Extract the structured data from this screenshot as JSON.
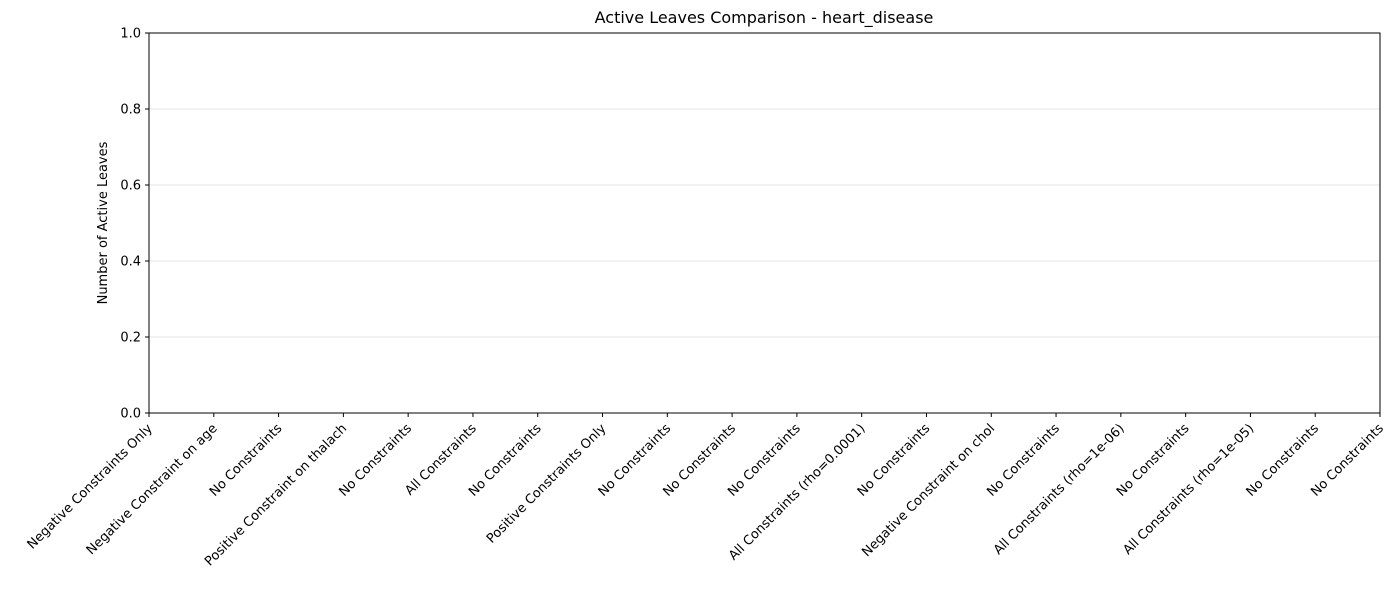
{
  "chart_data": {
    "type": "bar",
    "title": "Active Leaves Comparison - heart_disease",
    "xlabel": "",
    "ylabel": "Number of Active Leaves",
    "ylim": [
      0,
      1
    ],
    "yticks": [
      "0.0",
      "0.2",
      "0.4",
      "0.6",
      "0.8",
      "1.0"
    ],
    "grid": "y",
    "categories": [
      "Negative Constraints Only",
      "Negative Constraint on age",
      "No Constraints",
      "Positive Constraint on thalach",
      "No Constraints",
      "All Constraints",
      "No Constraints",
      "Positive Constraints Only",
      "No Constraints",
      "No Constraints",
      "No Constraints",
      "All Constraints (rho=0.0001)",
      "No Constraints",
      "Negative Constraint on chol",
      "No Constraints",
      "All Constraints (rho=1e-06)",
      "No Constraints",
      "All Constraints (rho=1e-05)",
      "No Constraints",
      "No Constraints"
    ],
    "values": [
      0,
      0,
      0,
      0,
      0,
      0,
      0,
      0,
      0,
      0,
      0,
      0,
      0,
      0,
      0,
      0,
      0,
      0,
      0,
      0
    ],
    "colors": {
      "grid": "#e6e6e6",
      "axis": "#000000",
      "bar": "#1f77b4"
    }
  }
}
